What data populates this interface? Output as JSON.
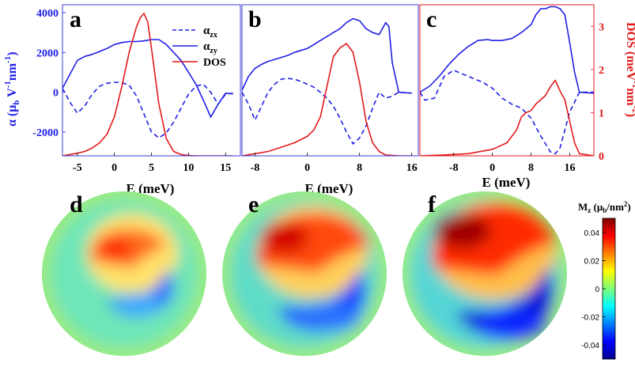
{
  "figure": {
    "panel_letters": [
      "a",
      "b",
      "c",
      "d",
      "e",
      "f"
    ]
  },
  "chart_data": [
    {
      "panel": "a",
      "type": "line",
      "xlabel": "E (meV)",
      "ylabel": "α (μ_b V^-1 nm^-1)",
      "y_label_parts": {
        "a": "α (μ",
        "b": "b",
        "c": " V",
        "d": "-1",
        "e": "nm",
        "f": "-1",
        "g": ")"
      },
      "xlim": [
        -7,
        17
      ],
      "ylim": [
        -3200,
        4400
      ],
      "xticks": [
        -5,
        0,
        5,
        10,
        15
      ],
      "xticklabels": [
        "-5",
        "0",
        "5",
        "10",
        "15"
      ],
      "yticks": [
        -2000,
        0,
        2000,
        4000
      ],
      "yticklabels": [
        "-2000",
        "0",
        "2000",
        "4000"
      ],
      "dos_ylim": [
        0,
        3.5
      ],
      "legend": {
        "position": "top-right",
        "entries": [
          {
            "label": "α",
            "sub": "zx",
            "style": "dashed",
            "color": "#1f1fe6"
          },
          {
            "label": "α",
            "sub": "zy",
            "style": "solid",
            "color": "#1f1fe6"
          },
          {
            "label": "DOS",
            "sub": "",
            "style": "solid",
            "color": "#e31a1c"
          }
        ]
      },
      "series": [
        {
          "name": "α_zx",
          "style": "dashed",
          "color": "#1f1fe6",
          "x": [
            -7,
            -6,
            -5,
            -4,
            -3,
            -2,
            -1,
            0,
            1,
            2,
            3,
            4,
            5,
            6,
            7,
            8,
            9,
            10,
            11,
            12,
            13,
            14,
            15,
            16
          ],
          "y": [
            200,
            -500,
            -1050,
            -700,
            -100,
            300,
            450,
            500,
            480,
            350,
            -200,
            -1100,
            -2000,
            -2300,
            -2050,
            -1500,
            -800,
            -100,
            300,
            400,
            0,
            -600,
            -100,
            -50
          ]
        },
        {
          "name": "α_zy",
          "style": "solid",
          "color": "#1f1fe6",
          "x": [
            -7,
            -6,
            -5,
            -4,
            -3,
            -2,
            -1,
            0,
            1,
            2,
            3,
            4,
            5,
            6,
            7,
            8,
            9,
            10,
            11,
            12,
            13,
            14,
            15,
            16
          ],
          "y": [
            200,
            900,
            1600,
            1800,
            1900,
            2050,
            2200,
            2400,
            2500,
            2550,
            2550,
            2580,
            2650,
            2650,
            2400,
            2000,
            1600,
            1000,
            400,
            -400,
            -1250,
            -600,
            -50,
            -80
          ]
        },
        {
          "name": "DOS",
          "style": "solid",
          "color": "#e31a1c",
          "axis": "right",
          "x": [
            -7,
            -6,
            -5,
            -4,
            -3,
            -2,
            -1,
            0,
            1,
            2,
            3,
            3.5,
            4,
            4.5,
            5,
            6,
            7,
            8,
            9,
            10,
            11,
            12,
            14,
            16
          ],
          "y": [
            0.0,
            0.03,
            0.06,
            0.1,
            0.18,
            0.3,
            0.5,
            0.9,
            1.6,
            2.4,
            3.0,
            3.2,
            3.3,
            3.1,
            2.5,
            1.2,
            0.4,
            0.1,
            0.03,
            0.01,
            0.0,
            0.0,
            0.0,
            0.0
          ]
        }
      ]
    },
    {
      "panel": "b",
      "type": "line",
      "xlabel": "E (meV)",
      "xlim": [
        -10,
        17
      ],
      "ylim": [
        -3200,
        4400
      ],
      "xticks": [
        -8,
        0,
        8,
        16
      ],
      "xticklabels": [
        "-8",
        "0",
        "8",
        "16"
      ],
      "dos_ylim": [
        0,
        3.5
      ],
      "series": [
        {
          "name": "α_zx",
          "style": "dashed",
          "color": "#1f1fe6",
          "x": [
            -10,
            -9,
            -8,
            -7,
            -6,
            -5,
            -4,
            -3,
            -2,
            -1,
            0,
            1,
            2,
            3,
            4,
            5,
            6,
            7,
            8,
            9,
            10,
            11,
            12,
            13,
            14,
            16
          ],
          "y": [
            0,
            -600,
            -1400,
            -700,
            0,
            400,
            650,
            700,
            650,
            550,
            400,
            250,
            0,
            -300,
            -700,
            -1300,
            -2000,
            -2600,
            -2300,
            -1700,
            -800,
            0,
            -300,
            -200,
            0,
            -50
          ]
        },
        {
          "name": "α_zy",
          "style": "solid",
          "color": "#1f1fe6",
          "x": [
            -10,
            -9,
            -8,
            -7,
            -6,
            -5,
            -4,
            -3,
            -2,
            -1,
            0,
            1,
            2,
            3,
            4,
            5,
            6,
            7,
            8,
            9,
            10,
            11,
            12,
            12.5,
            13,
            14,
            16
          ],
          "y": [
            100,
            800,
            1200,
            1400,
            1550,
            1650,
            1750,
            1850,
            2000,
            2100,
            2200,
            2400,
            2600,
            2800,
            3000,
            3200,
            3500,
            3700,
            3600,
            3200,
            3000,
            2900,
            3500,
            3300,
            1500,
            0,
            -50
          ]
        },
        {
          "name": "DOS",
          "style": "solid",
          "color": "#e31a1c",
          "axis": "right",
          "x": [
            -10,
            -8,
            -6,
            -4,
            -2,
            0,
            1,
            2,
            3,
            4,
            5,
            6,
            7,
            8,
            9,
            10,
            11,
            12,
            14,
            16
          ],
          "y": [
            0.0,
            0.05,
            0.1,
            0.2,
            0.3,
            0.45,
            0.6,
            0.9,
            1.6,
            2.3,
            2.5,
            2.6,
            2.4,
            1.7,
            0.8,
            0.3,
            0.1,
            0.02,
            0.0,
            0.0
          ]
        }
      ]
    },
    {
      "panel": "c",
      "type": "line",
      "xlabel": "E (meV)",
      "ylabel_right": "DOS (meV^-1nm^-2)",
      "right_label_parts": {
        "a": "DOS (meV",
        "b": "-1",
        "c": "nm",
        "d": "-2",
        "e": ")"
      },
      "xlim": [
        -15,
        21
      ],
      "ylim": [
        -3200,
        4400
      ],
      "xticks": [
        -8,
        0,
        8,
        16
      ],
      "xticklabels": [
        "-8",
        "0",
        "8",
        "16"
      ],
      "dos_ylim": [
        0,
        3.5
      ],
      "dos_yticks": [
        0,
        1,
        2,
        3
      ],
      "dos_yticklabels": [
        "0",
        "1",
        "2",
        "3"
      ],
      "series": [
        {
          "name": "α_zx",
          "style": "dashed",
          "color": "#1f1fe6",
          "x": [
            -15,
            -14,
            -12,
            -10,
            -8,
            -6,
            -4,
            -2,
            0,
            2,
            4,
            6,
            8,
            10,
            12,
            13,
            14,
            16,
            18,
            21
          ],
          "y": [
            0,
            -400,
            -300,
            800,
            1100,
            900,
            700,
            500,
            200,
            -300,
            -600,
            -800,
            -1300,
            -2200,
            -3000,
            -3100,
            -2800,
            -1000,
            0,
            0
          ]
        },
        {
          "name": "α_zy",
          "style": "solid",
          "color": "#1f1fe6",
          "x": [
            -15,
            -13,
            -11,
            -9,
            -7,
            -5,
            -3,
            -1,
            0,
            2,
            4,
            6,
            8,
            9,
            10,
            11,
            12,
            13,
            14,
            15,
            16,
            17,
            18,
            21
          ],
          "y": [
            0,
            300,
            800,
            1400,
            1900,
            2300,
            2600,
            2650,
            2600,
            2600,
            2700,
            3000,
            3400,
            3900,
            4200,
            4200,
            4300,
            4300,
            4200,
            3900,
            2500,
            1000,
            0,
            -50
          ]
        },
        {
          "name": "DOS",
          "style": "solid",
          "color": "#e31a1c",
          "axis": "right",
          "x": [
            -15,
            -10,
            -5,
            0,
            3,
            5,
            6,
            7,
            8,
            9,
            10,
            11,
            12,
            13,
            14,
            15,
            16,
            17,
            18,
            21
          ],
          "y": [
            0.0,
            0.02,
            0.05,
            0.15,
            0.3,
            0.6,
            0.9,
            1.0,
            1.05,
            1.2,
            1.3,
            1.4,
            1.6,
            1.75,
            1.5,
            1.3,
            0.8,
            0.3,
            0.05,
            0.0
          ]
        }
      ]
    },
    {
      "panel": "d-f",
      "type": "heatmap",
      "colorbar": {
        "label": "M_z (μ_b/nm^2)",
        "label_parts": {
          "a": "M",
          "b": "z",
          "c": " (μ",
          "d": "b",
          "e": "/nm",
          "f": "2",
          "g": ")"
        },
        "range": [
          -0.05,
          0.05
        ],
        "ticks": [
          0.04,
          0.02,
          0,
          -0.02,
          -0.04
        ],
        "ticklabels": [
          "0.04",
          "0.02",
          "0",
          "-0.02",
          "-0.04"
        ],
        "colormap": "jet"
      },
      "maps": [
        {
          "panel": "d",
          "description_level": "weak"
        },
        {
          "panel": "e",
          "description_level": "medium"
        },
        {
          "panel": "f",
          "description_level": "strong"
        }
      ]
    }
  ]
}
